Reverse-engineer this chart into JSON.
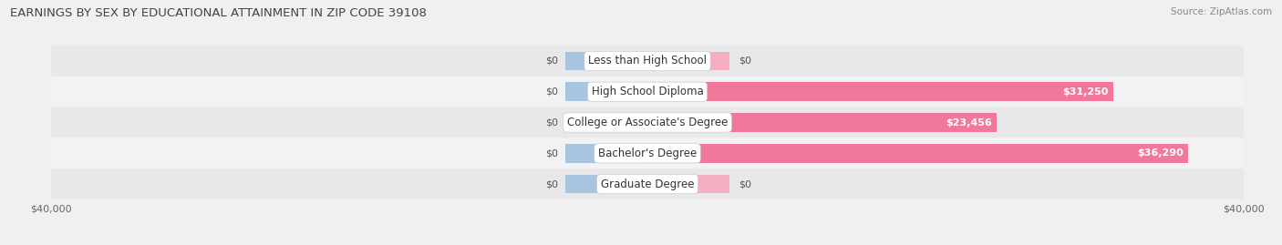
{
  "title": "EARNINGS BY SEX BY EDUCATIONAL ATTAINMENT IN ZIP CODE 39108",
  "source": "Source: ZipAtlas.com",
  "categories": [
    "Less than High School",
    "High School Diploma",
    "College or Associate's Degree",
    "Bachelor's Degree",
    "Graduate Degree"
  ],
  "male_values": [
    0,
    0,
    0,
    0,
    0
  ],
  "female_values": [
    0,
    31250,
    23456,
    36290,
    0
  ],
  "male_display": [
    "$0",
    "$0",
    "$0",
    "$0",
    "$0"
  ],
  "female_display": [
    "$0",
    "$31,250",
    "$23,456",
    "$36,290",
    "$0"
  ],
  "male_color": "#a8c4e0",
  "female_color": "#f0789a",
  "female_color_light": "#f5adc0",
  "max_value": 40000,
  "stub_value": 5500,
  "bar_height": 0.62,
  "background_color": "#f0f0f0",
  "row_colors": [
    "#e8e8e8",
    "#f2f2f2"
  ],
  "title_fontsize": 9.5,
  "label_fontsize": 8.5,
  "value_fontsize": 8,
  "tick_fontsize": 8
}
